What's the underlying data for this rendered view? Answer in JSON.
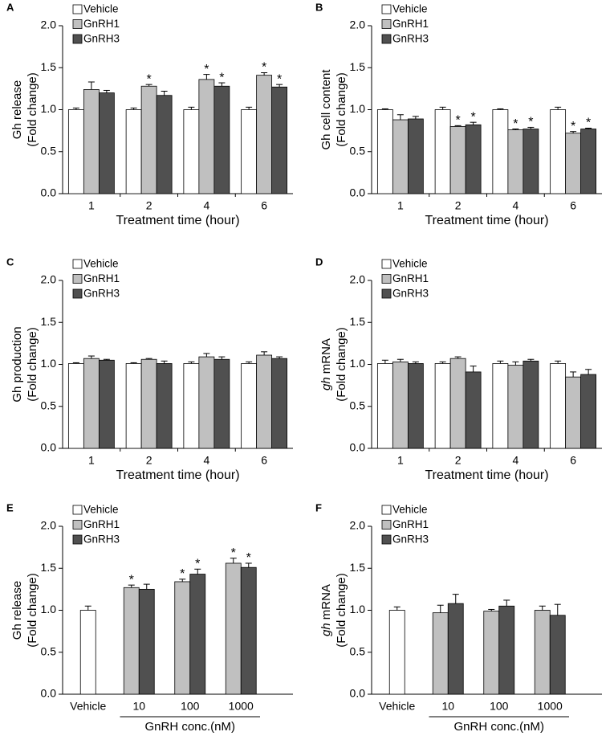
{
  "chart_data": [
    {
      "type": "bar",
      "panel": "A",
      "ylabel": [
        "Gh release",
        "(Fold change)"
      ],
      "xlabel": "Treatment time (hour)",
      "categories": [
        "1",
        "2",
        "4",
        "6"
      ],
      "ylim": [
        0,
        2
      ],
      "yticks": [
        {
          "value": 0,
          "label": "0.0"
        },
        {
          "value": 0.5,
          "label": "0.5"
        },
        {
          "value": 1,
          "label": "1.0"
        },
        {
          "value": 1.5,
          "label": "1.5"
        },
        {
          "value": 2,
          "label": "2.0"
        }
      ],
      "series": [
        {
          "name": "Vehicle",
          "color": "#ffffff",
          "values": [
            1,
            1,
            1,
            1
          ],
          "errors": [
            0.02,
            0.02,
            0.03,
            0.03
          ],
          "significance": [
            null,
            null,
            null,
            null
          ]
        },
        {
          "name": "GnRH1",
          "color": "#c0c0c0",
          "values": [
            1.24,
            1.28,
            1.36,
            1.41
          ],
          "errors": [
            0.09,
            0.02,
            0.06,
            0.03
          ],
          "significance": [
            null,
            "*",
            "*",
            "*"
          ]
        },
        {
          "name": "GnRH3",
          "color": "#505050",
          "values": [
            1.2,
            1.17,
            1.28,
            1.27
          ],
          "errors": [
            0.03,
            0.05,
            0.04,
            0.03
          ],
          "significance": [
            null,
            null,
            "*",
            "*"
          ]
        }
      ]
    },
    {
      "type": "bar",
      "panel": "B",
      "ylabel": [
        "Gh cell content",
        "(Fold change)"
      ],
      "xlabel": "Treatment time (hour)",
      "categories": [
        "1",
        "2",
        "4",
        "6"
      ],
      "ylim": [
        0,
        2
      ],
      "yticks": [
        {
          "value": 0,
          "label": "0.0"
        },
        {
          "value": 0.5,
          "label": "0.5"
        },
        {
          "value": 1,
          "label": "1.0"
        },
        {
          "value": 1.5,
          "label": "1.5"
        },
        {
          "value": 2,
          "label": "2.0"
        }
      ],
      "series": [
        {
          "name": "Vehicle",
          "color": "#ffffff",
          "values": [
            1,
            1,
            1,
            1
          ],
          "errors": [
            0.01,
            0.03,
            0.01,
            0.03
          ],
          "significance": [
            null,
            null,
            null,
            null
          ]
        },
        {
          "name": "GnRH1",
          "color": "#c0c0c0",
          "values": [
            0.88,
            0.8,
            0.76,
            0.72
          ],
          "errors": [
            0.06,
            0.01,
            0.01,
            0.02
          ],
          "significance": [
            null,
            "*",
            "*",
            "*"
          ]
        },
        {
          "name": "GnRH3",
          "color": "#505050",
          "values": [
            0.89,
            0.82,
            0.77,
            0.77
          ],
          "errors": [
            0.03,
            0.03,
            0.02,
            0.01
          ],
          "significance": [
            null,
            "*",
            "*",
            "*"
          ]
        }
      ]
    },
    {
      "type": "bar",
      "panel": "C",
      "ylabel": [
        "Gh production",
        "(Fold change)"
      ],
      "xlabel": "Treatment time (hour)",
      "categories": [
        "1",
        "2",
        "4",
        "6"
      ],
      "ylim": [
        0,
        2
      ],
      "yticks": [
        {
          "value": 0,
          "label": "0.0"
        },
        {
          "value": 0.5,
          "label": "0.5"
        },
        {
          "value": 1,
          "label": "1.0"
        },
        {
          "value": 1.5,
          "label": "1.5"
        },
        {
          "value": 2,
          "label": "2.0"
        }
      ],
      "series": [
        {
          "name": "Vehicle",
          "color": "#ffffff",
          "values": [
            1.01,
            1.01,
            1.01,
            1.01
          ],
          "errors": [
            0.01,
            0.01,
            0.02,
            0.02
          ],
          "significance": [
            null,
            null,
            null,
            null
          ]
        },
        {
          "name": "GnRH1",
          "color": "#c0c0c0",
          "values": [
            1.07,
            1.06,
            1.09,
            1.11
          ],
          "errors": [
            0.03,
            0.01,
            0.04,
            0.04
          ],
          "significance": [
            null,
            null,
            null,
            null
          ]
        },
        {
          "name": "GnRH3",
          "color": "#505050",
          "values": [
            1.05,
            1.01,
            1.06,
            1.07
          ],
          "errors": [
            0.01,
            0.03,
            0.03,
            0.02
          ],
          "significance": [
            null,
            null,
            null,
            null
          ]
        }
      ]
    },
    {
      "type": "bar",
      "panel": "D",
      "ylabel": [
        {
          "italic": "gh",
          "text": "mRNA"
        },
        "(Fold change)"
      ],
      "xlabel": "Treatment time (hour)",
      "categories": [
        "1",
        "2",
        "4",
        "6"
      ],
      "ylim": [
        0,
        2
      ],
      "yticks": [
        {
          "value": 0,
          "label": "0.0"
        },
        {
          "value": 0.5,
          "label": "0.5"
        },
        {
          "value": 1,
          "label": "1.0"
        },
        {
          "value": 1.5,
          "label": "1.5"
        },
        {
          "value": 2,
          "label": "2.0"
        }
      ],
      "series": [
        {
          "name": "Vehicle",
          "color": "#ffffff",
          "values": [
            1.01,
            1.01,
            1.01,
            1.01
          ],
          "errors": [
            0.04,
            0.02,
            0.03,
            0.03
          ],
          "significance": [
            null,
            null,
            null,
            null
          ]
        },
        {
          "name": "GnRH1",
          "color": "#c0c0c0",
          "values": [
            1.03,
            1.07,
            0.99,
            0.85
          ],
          "errors": [
            0.03,
            0.02,
            0.04,
            0.06
          ],
          "significance": [
            null,
            null,
            null,
            null
          ]
        },
        {
          "name": "GnRH3",
          "color": "#505050",
          "values": [
            1.01,
            0.91,
            1.04,
            0.88
          ],
          "errors": [
            0.02,
            0.07,
            0.02,
            0.06
          ],
          "significance": [
            null,
            null,
            null,
            null
          ]
        }
      ]
    },
    {
      "type": "bar",
      "panel": "E",
      "ylabel": [
        "Gh release",
        "(Fold change)"
      ],
      "xlabel": "GnRH conc.(nM)",
      "categories": [
        "Vehicle",
        "10",
        "100",
        "1000"
      ],
      "ylim": [
        0,
        2
      ],
      "yticks": [
        {
          "value": 0,
          "label": "0.0"
        },
        {
          "value": 0.5,
          "label": "0.5"
        },
        {
          "value": 1,
          "label": "1.0"
        },
        {
          "value": 1.5,
          "label": "1.5"
        },
        {
          "value": 2,
          "label": "2.0"
        }
      ],
      "series": [
        {
          "name": "Vehicle",
          "color": "#ffffff",
          "values": [
            1,
            null,
            null,
            null
          ],
          "errors": [
            0.05,
            null,
            null,
            null
          ],
          "significance": [
            null,
            null,
            null,
            null
          ]
        },
        {
          "name": "GnRH1",
          "color": "#c0c0c0",
          "values": [
            null,
            1.27,
            1.34,
            1.56
          ],
          "errors": [
            null,
            0.03,
            0.03,
            0.06
          ],
          "significance": [
            null,
            "*",
            "*",
            "*"
          ]
        },
        {
          "name": "GnRH3",
          "color": "#505050",
          "values": [
            null,
            1.25,
            1.43,
            1.51
          ],
          "errors": [
            null,
            0.06,
            0.06,
            0.05
          ],
          "significance": [
            null,
            null,
            "*",
            "*"
          ]
        }
      ]
    },
    {
      "type": "bar",
      "panel": "F",
      "ylabel": [
        {
          "italic": "gh",
          "text": "mRNA"
        },
        "(Fold change)"
      ],
      "xlabel": "GnRH conc.(nM)",
      "categories": [
        "Vehicle",
        "10",
        "100",
        "1000"
      ],
      "ylim": [
        0,
        2
      ],
      "yticks": [
        {
          "value": 0,
          "label": "0.0"
        },
        {
          "value": 0.5,
          "label": "0.5"
        },
        {
          "value": 1,
          "label": "1.0"
        },
        {
          "value": 1.5,
          "label": "1.5"
        },
        {
          "value": 2,
          "label": "2.0"
        }
      ],
      "series": [
        {
          "name": "Vehicle",
          "color": "#ffffff",
          "values": [
            1,
            null,
            null,
            null
          ],
          "errors": [
            0.04,
            null,
            null,
            null
          ],
          "significance": [
            null,
            null,
            null,
            null
          ]
        },
        {
          "name": "GnRH1",
          "color": "#c0c0c0",
          "values": [
            null,
            0.97,
            0.99,
            1
          ],
          "errors": [
            null,
            0.09,
            0.02,
            0.05
          ],
          "significance": [
            null,
            null,
            null,
            null
          ]
        },
        {
          "name": "GnRH3",
          "color": "#505050",
          "values": [
            null,
            1.08,
            1.05,
            0.94
          ],
          "errors": [
            null,
            0.11,
            0.07,
            0.13
          ],
          "significance": [
            null,
            null,
            null,
            null
          ]
        }
      ]
    }
  ]
}
